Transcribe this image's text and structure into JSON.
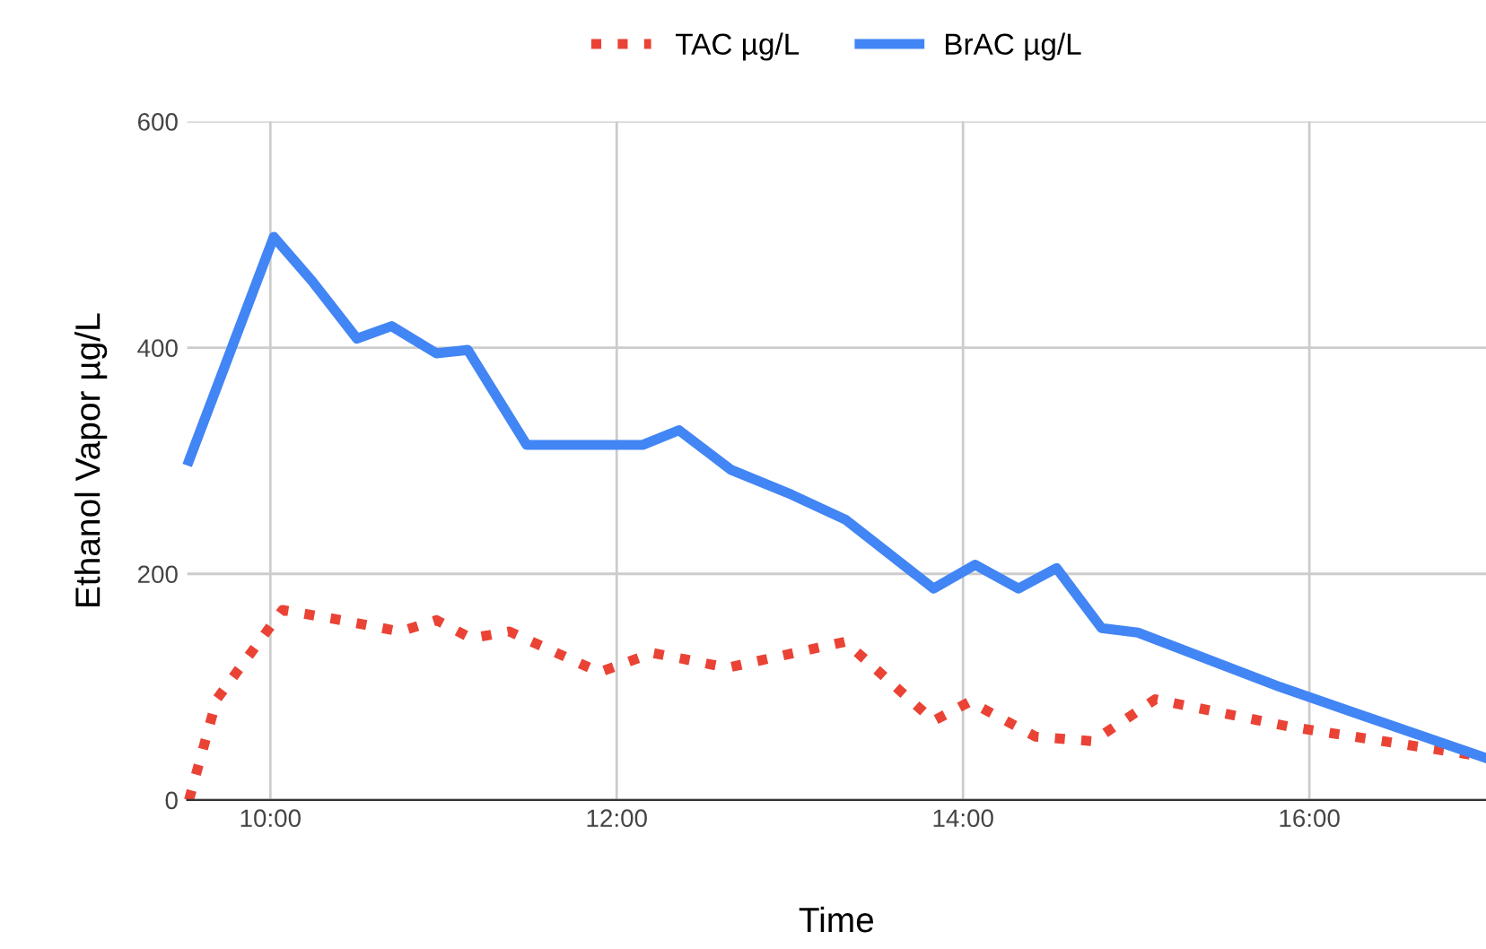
{
  "chart_data": {
    "type": "line",
    "xlabel": "Time",
    "ylabel": "Ethanol Vapor µg/L",
    "xlim": [
      9.52,
      17.02
    ],
    "ylim": [
      0,
      600
    ],
    "xticks": [
      {
        "value": 10,
        "label": "10:00"
      },
      {
        "value": 12,
        "label": "12:00"
      },
      {
        "value": 14,
        "label": "14:00"
      },
      {
        "value": 16,
        "label": "16:00"
      }
    ],
    "yticks": [
      0,
      200,
      400,
      600
    ],
    "grid": true,
    "legend": "top",
    "series": [
      {
        "name": "TAC µg/L",
        "color": "#ea4335",
        "line_style": "dotted",
        "x": [
          9.53,
          9.69,
          10.07,
          10.41,
          10.75,
          10.96,
          11.16,
          11.38,
          11.9,
          12.21,
          12.64,
          13.32,
          13.83,
          14.04,
          14.42,
          14.75,
          15.11,
          15.88,
          17.02
        ],
        "values": [
          0,
          89,
          168,
          159,
          149,
          159,
          143,
          149,
          113,
          130,
          117,
          140,
          70,
          87,
          56,
          52,
          89,
          65,
          38
        ]
      },
      {
        "name": "BrAC µg/L",
        "color": "#4285f4",
        "line_style": "solid",
        "x": [
          9.53,
          10.02,
          10.24,
          10.5,
          10.7,
          10.96,
          11.14,
          11.48,
          11.79,
          12.15,
          12.36,
          12.66,
          13.01,
          13.32,
          13.83,
          14.07,
          14.32,
          14.54,
          14.8,
          15.01,
          15.83,
          17.02
        ],
        "values": [
          300,
          498,
          459,
          408,
          419,
          395,
          398,
          314,
          314,
          314,
          327,
          292,
          270,
          248,
          187,
          208,
          187,
          205,
          152,
          148,
          100,
          37
        ]
      }
    ]
  }
}
